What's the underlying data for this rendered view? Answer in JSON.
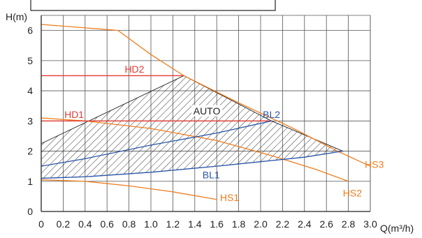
{
  "chart_data": {
    "type": "line",
    "title": "",
    "ylabel": "H(m)",
    "xlabel": "Q(m³/h)",
    "xlim": [
      0,
      3.0
    ],
    "ylim": [
      0,
      6.5
    ],
    "x_ticks": [
      "0",
      "0.2",
      "0.4",
      "0.6",
      "0.8",
      "1.0",
      "1.2",
      "1.4",
      "1.6",
      "1.8",
      "2.0",
      "2.2",
      "2.4",
      "2.6",
      "2.8",
      "3.0"
    ],
    "y_ticks": [
      "0",
      "1",
      "2",
      "3",
      "4",
      "5",
      "6"
    ],
    "grid": true,
    "colors": {
      "orange": "#ee7d1f",
      "red": "#e23b33",
      "blue": "#2a55a8",
      "black": "#222222",
      "grid": "#555555"
    },
    "series": [
      {
        "name": "HS3",
        "color": "#ee7d1f",
        "x": [
          0,
          0.7,
          1.0,
          1.3,
          1.8,
          2.3,
          2.7,
          3.0
        ],
        "y": [
          6.2,
          6.0,
          5.2,
          4.5,
          3.6,
          2.75,
          2.0,
          1.5
        ]
      },
      {
        "name": "HS2",
        "color": "#ee7d1f",
        "x": [
          0,
          0.4,
          1.0,
          1.6,
          2.1,
          2.5,
          2.8
        ],
        "y": [
          3.1,
          3.0,
          2.75,
          2.35,
          1.85,
          1.4,
          1.0
        ]
      },
      {
        "name": "HS1",
        "color": "#ee7d1f",
        "x": [
          0,
          0.4,
          0.8,
          1.2,
          1.6
        ],
        "y": [
          1.05,
          1.0,
          0.85,
          0.65,
          0.4
        ]
      },
      {
        "name": "HD2",
        "color": "#e23b33",
        "x": [
          0,
          1.3
        ],
        "y": [
          4.5,
          4.5
        ]
      },
      {
        "name": "HD1",
        "color": "#e23b33",
        "x": [
          0,
          2.1
        ],
        "y": [
          3.0,
          3.0
        ]
      },
      {
        "name": "BL2",
        "color": "#2a55a8",
        "x": [
          0,
          0.4,
          1.0,
          1.6,
          2.1
        ],
        "y": [
          1.5,
          1.75,
          2.2,
          2.6,
          3.0
        ]
      },
      {
        "name": "BL1",
        "color": "#2a55a8",
        "x": [
          0,
          0.4,
          1.0,
          1.6,
          2.0,
          2.4,
          2.75
        ],
        "y": [
          1.1,
          1.15,
          1.3,
          1.5,
          1.65,
          1.8,
          2.0
        ]
      }
    ],
    "auto_region": {
      "label": "AUTO",
      "upper": {
        "x": [
          0,
          1.3,
          2.1,
          2.75
        ],
        "y": [
          2.25,
          4.5,
          3.0,
          2.0
        ]
      },
      "lower": {
        "x": [
          0,
          0.4,
          1.0,
          1.6,
          2.0,
          2.4,
          2.75
        ],
        "y": [
          1.1,
          1.15,
          1.3,
          1.5,
          1.65,
          1.8,
          2.0
        ]
      }
    },
    "labels": [
      {
        "text": "HS3",
        "color": "#ee7d1f",
        "x": 2.95,
        "y": 1.45,
        "anchor": "start"
      },
      {
        "text": "HS2",
        "color": "#ee7d1f",
        "x": 2.75,
        "y": 0.5,
        "anchor": "start"
      },
      {
        "text": "HS1",
        "color": "#ee7d1f",
        "x": 1.63,
        "y": 0.35,
        "anchor": "start"
      },
      {
        "text": "HD2",
        "color": "#e23b33",
        "x": 0.85,
        "y": 4.6,
        "anchor": "middle"
      },
      {
        "text": "HD1",
        "color": "#e23b33",
        "x": 0.3,
        "y": 3.1,
        "anchor": "middle"
      },
      {
        "text": "BL2",
        "color": "#2a55a8",
        "x": 2.02,
        "y": 3.1,
        "anchor": "start"
      },
      {
        "text": "BL1",
        "color": "#2a55a8",
        "x": 1.47,
        "y": 1.1,
        "anchor": "start"
      },
      {
        "text": "AUTO",
        "color": "#222222",
        "x": 1.51,
        "y": 3.22,
        "anchor": "middle"
      }
    ]
  }
}
